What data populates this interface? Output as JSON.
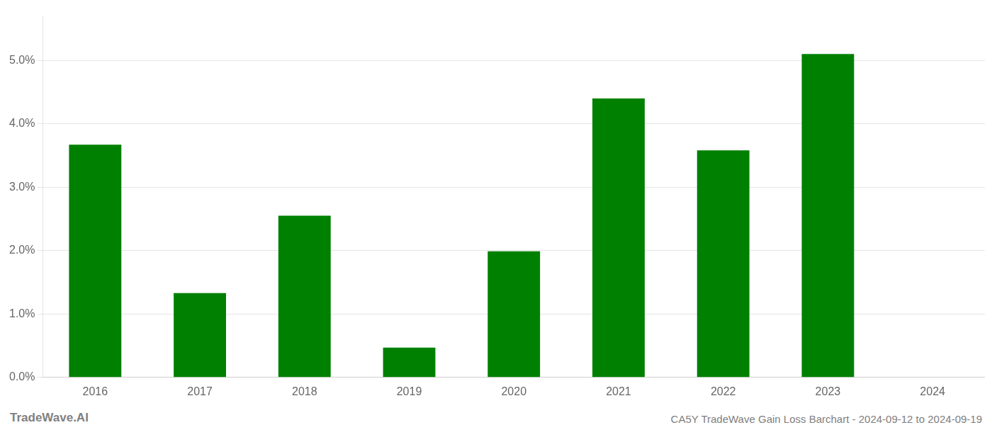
{
  "chart_data": {
    "type": "bar",
    "categories": [
      "2016",
      "2017",
      "2018",
      "2019",
      "2020",
      "2021",
      "2022",
      "2023",
      "2024"
    ],
    "values": [
      0.0367,
      0.0133,
      0.0255,
      0.0047,
      0.0199,
      0.044,
      0.0358,
      0.051,
      0.0
    ],
    "color": "#008000",
    "ylim": [
      0,
      0.057
    ],
    "yticks": [
      {
        "value": 0.0,
        "label": "0.0%"
      },
      {
        "value": 0.01,
        "label": "1.0%"
      },
      {
        "value": 0.02,
        "label": "2.0%"
      },
      {
        "value": 0.03,
        "label": "3.0%"
      },
      {
        "value": 0.04,
        "label": "4.0%"
      },
      {
        "value": 0.05,
        "label": "5.0%"
      }
    ],
    "grid": true,
    "annotations": [
      "TradeWave.AI",
      "CA5Y TradeWave Gain Loss Barchart - 2024-09-12 to 2024-09-19"
    ]
  }
}
